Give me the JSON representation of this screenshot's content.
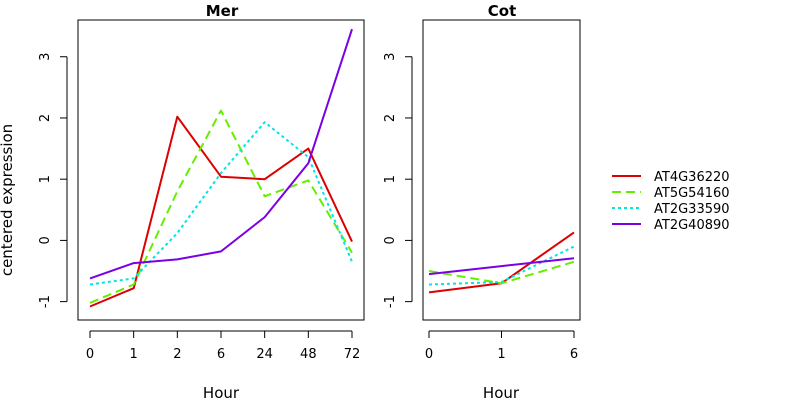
{
  "chart_data": [
    {
      "type": "line",
      "title": "Mer",
      "xlabel": "Hour",
      "ylabel": "centered expression",
      "categories": [
        "0",
        "1",
        "2",
        "6",
        "24",
        "48",
        "72"
      ],
      "ylim": [
        -1.3,
        3.6
      ],
      "yticks": [
        "-1",
        "0",
        "1",
        "2",
        "3"
      ],
      "grid": false,
      "series": [
        {
          "name": "AT4G36220",
          "color": "#dd0000",
          "dash": "solid",
          "values": [
            -1.08,
            -0.78,
            2.02,
            1.04,
            1.0,
            1.5,
            -0.02
          ]
        },
        {
          "name": "AT5G54160",
          "color": "#66ee00",
          "dash": "dashed",
          "values": [
            -1.02,
            -0.72,
            0.8,
            2.12,
            0.72,
            0.98,
            -0.2
          ]
        },
        {
          "name": "AT2G33590",
          "color": "#00e6e6",
          "dash": "dotted",
          "values": [
            -0.72,
            -0.62,
            0.12,
            1.1,
            1.93,
            1.36,
            -0.35
          ]
        },
        {
          "name": "AT2G40890",
          "color": "#7a00e6",
          "dash": "solid",
          "values": [
            -0.62,
            -0.37,
            -0.31,
            -0.18,
            0.38,
            1.26,
            3.45
          ]
        }
      ]
    },
    {
      "type": "line",
      "title": "Cot",
      "xlabel": "Hour",
      "categories": [
        "0",
        "1",
        "6"
      ],
      "ylim": [
        -1.3,
        3.6
      ],
      "yticks": [
        "-1",
        "0",
        "1",
        "2",
        "3"
      ],
      "grid": false,
      "series": [
        {
          "name": "AT4G36220",
          "color": "#dd0000",
          "dash": "solid",
          "values": [
            -0.85,
            -0.7,
            0.13
          ]
        },
        {
          "name": "AT5G54160",
          "color": "#66ee00",
          "dash": "dashed",
          "values": [
            -0.5,
            -0.7,
            -0.35
          ]
        },
        {
          "name": "AT2G33590",
          "color": "#00e6e6",
          "dash": "dotted",
          "values": [
            -0.72,
            -0.68,
            -0.1
          ]
        },
        {
          "name": "AT2G40890",
          "color": "#7a00e6",
          "dash": "solid",
          "values": [
            -0.55,
            -0.42,
            -0.29
          ]
        }
      ]
    }
  ],
  "legend": {
    "placement": "right",
    "entries": [
      {
        "label": "AT4G36220",
        "color": "#dd0000",
        "dash": "solid"
      },
      {
        "label": "AT5G54160",
        "color": "#66ee00",
        "dash": "dashed"
      },
      {
        "label": "AT2G33590",
        "color": "#00e6e6",
        "dash": "dotted"
      },
      {
        "label": "AT2G40890",
        "color": "#7a00e6",
        "dash": "solid"
      }
    ]
  }
}
